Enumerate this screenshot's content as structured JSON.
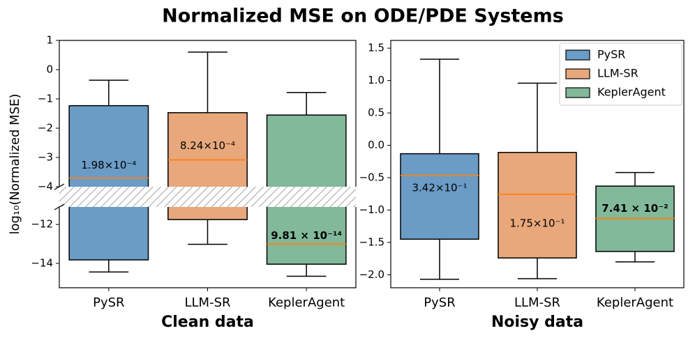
{
  "title": "Normalized MSE on ODE/PDE Systems",
  "chart_data": [
    {
      "type": "box",
      "xlabel": "Clean data",
      "ylabel": "log₁₀(Normalized MSE)",
      "categories": [
        "PySR",
        "LLM-SR",
        "KeplerAgent"
      ],
      "y_broken": true,
      "ylim": [
        -4.0,
        1.0
      ],
      "yticks": [
        {
          "value": -4,
          "label": "−4"
        },
        {
          "value": -3,
          "label": "−3"
        },
        {
          "value": -2,
          "label": "−2"
        },
        {
          "value": -1,
          "label": "−1"
        },
        0,
        1
      ],
      "ylim_lower": [
        -15.25,
        -11.1
      ],
      "yticks_lower": [
        {
          "value": -14,
          "label": "−14"
        },
        {
          "value": -12,
          "label": "−12"
        }
      ],
      "legend": null,
      "boxes": [
        {
          "color": "#6a9cc6",
          "low": -14.44,
          "q1": -13.82,
          "median": -3.703,
          "q3": -1.23,
          "high": -0.36,
          "median_label": "1.98×10⁻⁴",
          "bold": false
        },
        {
          "color": "#e8a87c",
          "low": -13.02,
          "q1": -11.75,
          "median": -3.084,
          "q3": -1.47,
          "high": 0.6,
          "median_label": "8.24×10⁻⁴",
          "bold": false
        },
        {
          "color": "#82b99b",
          "low": -14.66,
          "q1": -14.04,
          "median": -13.008,
          "q3": -1.55,
          "high": -0.78,
          "median_label": "9.81 × 10⁻¹⁴",
          "bold": true
        }
      ]
    },
    {
      "type": "box",
      "xlabel": "Noisy data",
      "categories": [
        "PySR",
        "LLM-SR",
        "KeplerAgent"
      ],
      "y_broken": false,
      "ylim": [
        -2.2,
        1.62
      ],
      "yticks": [
        {
          "value": -2.0,
          "label": "−2.0"
        },
        {
          "value": -1.5,
          "label": "−1.5"
        },
        {
          "value": -1.0,
          "label": "−1.0"
        },
        {
          "value": -0.5,
          "label": "−0.5"
        },
        {
          "value": 0.0,
          "label": "0.0"
        },
        0.5,
        {
          "value": 1.0,
          "label": "1.0"
        },
        1.5
      ],
      "legend": "upper right",
      "boxes": [
        {
          "color": "#6a9cc6",
          "low": -2.07,
          "q1": -1.45,
          "median": -0.466,
          "q3": -0.13,
          "high": 1.33,
          "median_label": "3.42×10⁻¹",
          "bold": false
        },
        {
          "color": "#e8a87c",
          "low": -2.06,
          "q1": -1.74,
          "median": -0.757,
          "q3": -0.11,
          "high": 0.96,
          "median_label": "1.75×10⁻¹",
          "bold": false
        },
        {
          "color": "#82b99b",
          "low": -1.8,
          "q1": -1.64,
          "median": -1.13,
          "q3": -0.63,
          "high": -0.42,
          "median_label": "7.41 × 10⁻²",
          "bold": true
        }
      ]
    }
  ]
}
